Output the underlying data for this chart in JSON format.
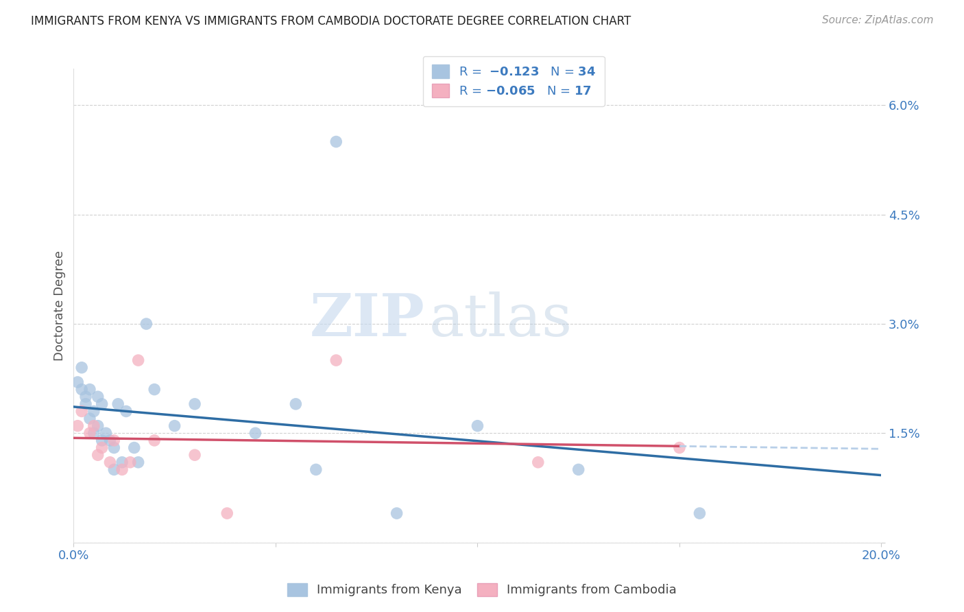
{
  "title": "IMMIGRANTS FROM KENYA VS IMMIGRANTS FROM CAMBODIA DOCTORATE DEGREE CORRELATION CHART",
  "source": "Source: ZipAtlas.com",
  "ylabel": "Doctorate Degree",
  "xlim": [
    0.0,
    0.2
  ],
  "ylim": [
    0.0,
    0.065
  ],
  "xticks": [
    0.0,
    0.05,
    0.1,
    0.15,
    0.2
  ],
  "xticklabels": [
    "0.0%",
    "",
    "",
    "",
    "20.0%"
  ],
  "yticks": [
    0.0,
    0.015,
    0.03,
    0.045,
    0.06
  ],
  "yticklabels": [
    "",
    "1.5%",
    "3.0%",
    "4.5%",
    "6.0%"
  ],
  "kenya_R": -0.123,
  "kenya_N": 34,
  "cambodia_R": -0.065,
  "cambodia_N": 17,
  "kenya_color": "#a8c4e0",
  "kenya_line_color": "#2e6da4",
  "cambodia_color": "#f4b0c0",
  "cambodia_line_color": "#d0506a",
  "trend_ext_color": "#b8cfe8",
  "background_color": "#ffffff",
  "kenya_x": [
    0.001,
    0.002,
    0.002,
    0.003,
    0.003,
    0.004,
    0.004,
    0.005,
    0.005,
    0.006,
    0.006,
    0.007,
    0.007,
    0.008,
    0.009,
    0.01,
    0.01,
    0.011,
    0.012,
    0.013,
    0.015,
    0.016,
    0.018,
    0.02,
    0.025,
    0.03,
    0.045,
    0.055,
    0.06,
    0.065,
    0.08,
    0.1,
    0.125,
    0.155
  ],
  "kenya_y": [
    0.022,
    0.024,
    0.021,
    0.02,
    0.019,
    0.021,
    0.017,
    0.018,
    0.015,
    0.02,
    0.016,
    0.019,
    0.014,
    0.015,
    0.014,
    0.013,
    0.01,
    0.019,
    0.011,
    0.018,
    0.013,
    0.011,
    0.03,
    0.021,
    0.016,
    0.019,
    0.015,
    0.019,
    0.01,
    0.055,
    0.004,
    0.016,
    0.01,
    0.004
  ],
  "cambodia_x": [
    0.001,
    0.002,
    0.004,
    0.005,
    0.006,
    0.007,
    0.009,
    0.01,
    0.012,
    0.014,
    0.016,
    0.02,
    0.03,
    0.038,
    0.065,
    0.115,
    0.15
  ],
  "cambodia_y": [
    0.016,
    0.018,
    0.015,
    0.016,
    0.012,
    0.013,
    0.011,
    0.014,
    0.01,
    0.011,
    0.025,
    0.014,
    0.012,
    0.004,
    0.025,
    0.011,
    0.013
  ],
  "watermark_zip": "ZIP",
  "watermark_atlas": "atlas",
  "marker_size": 160
}
